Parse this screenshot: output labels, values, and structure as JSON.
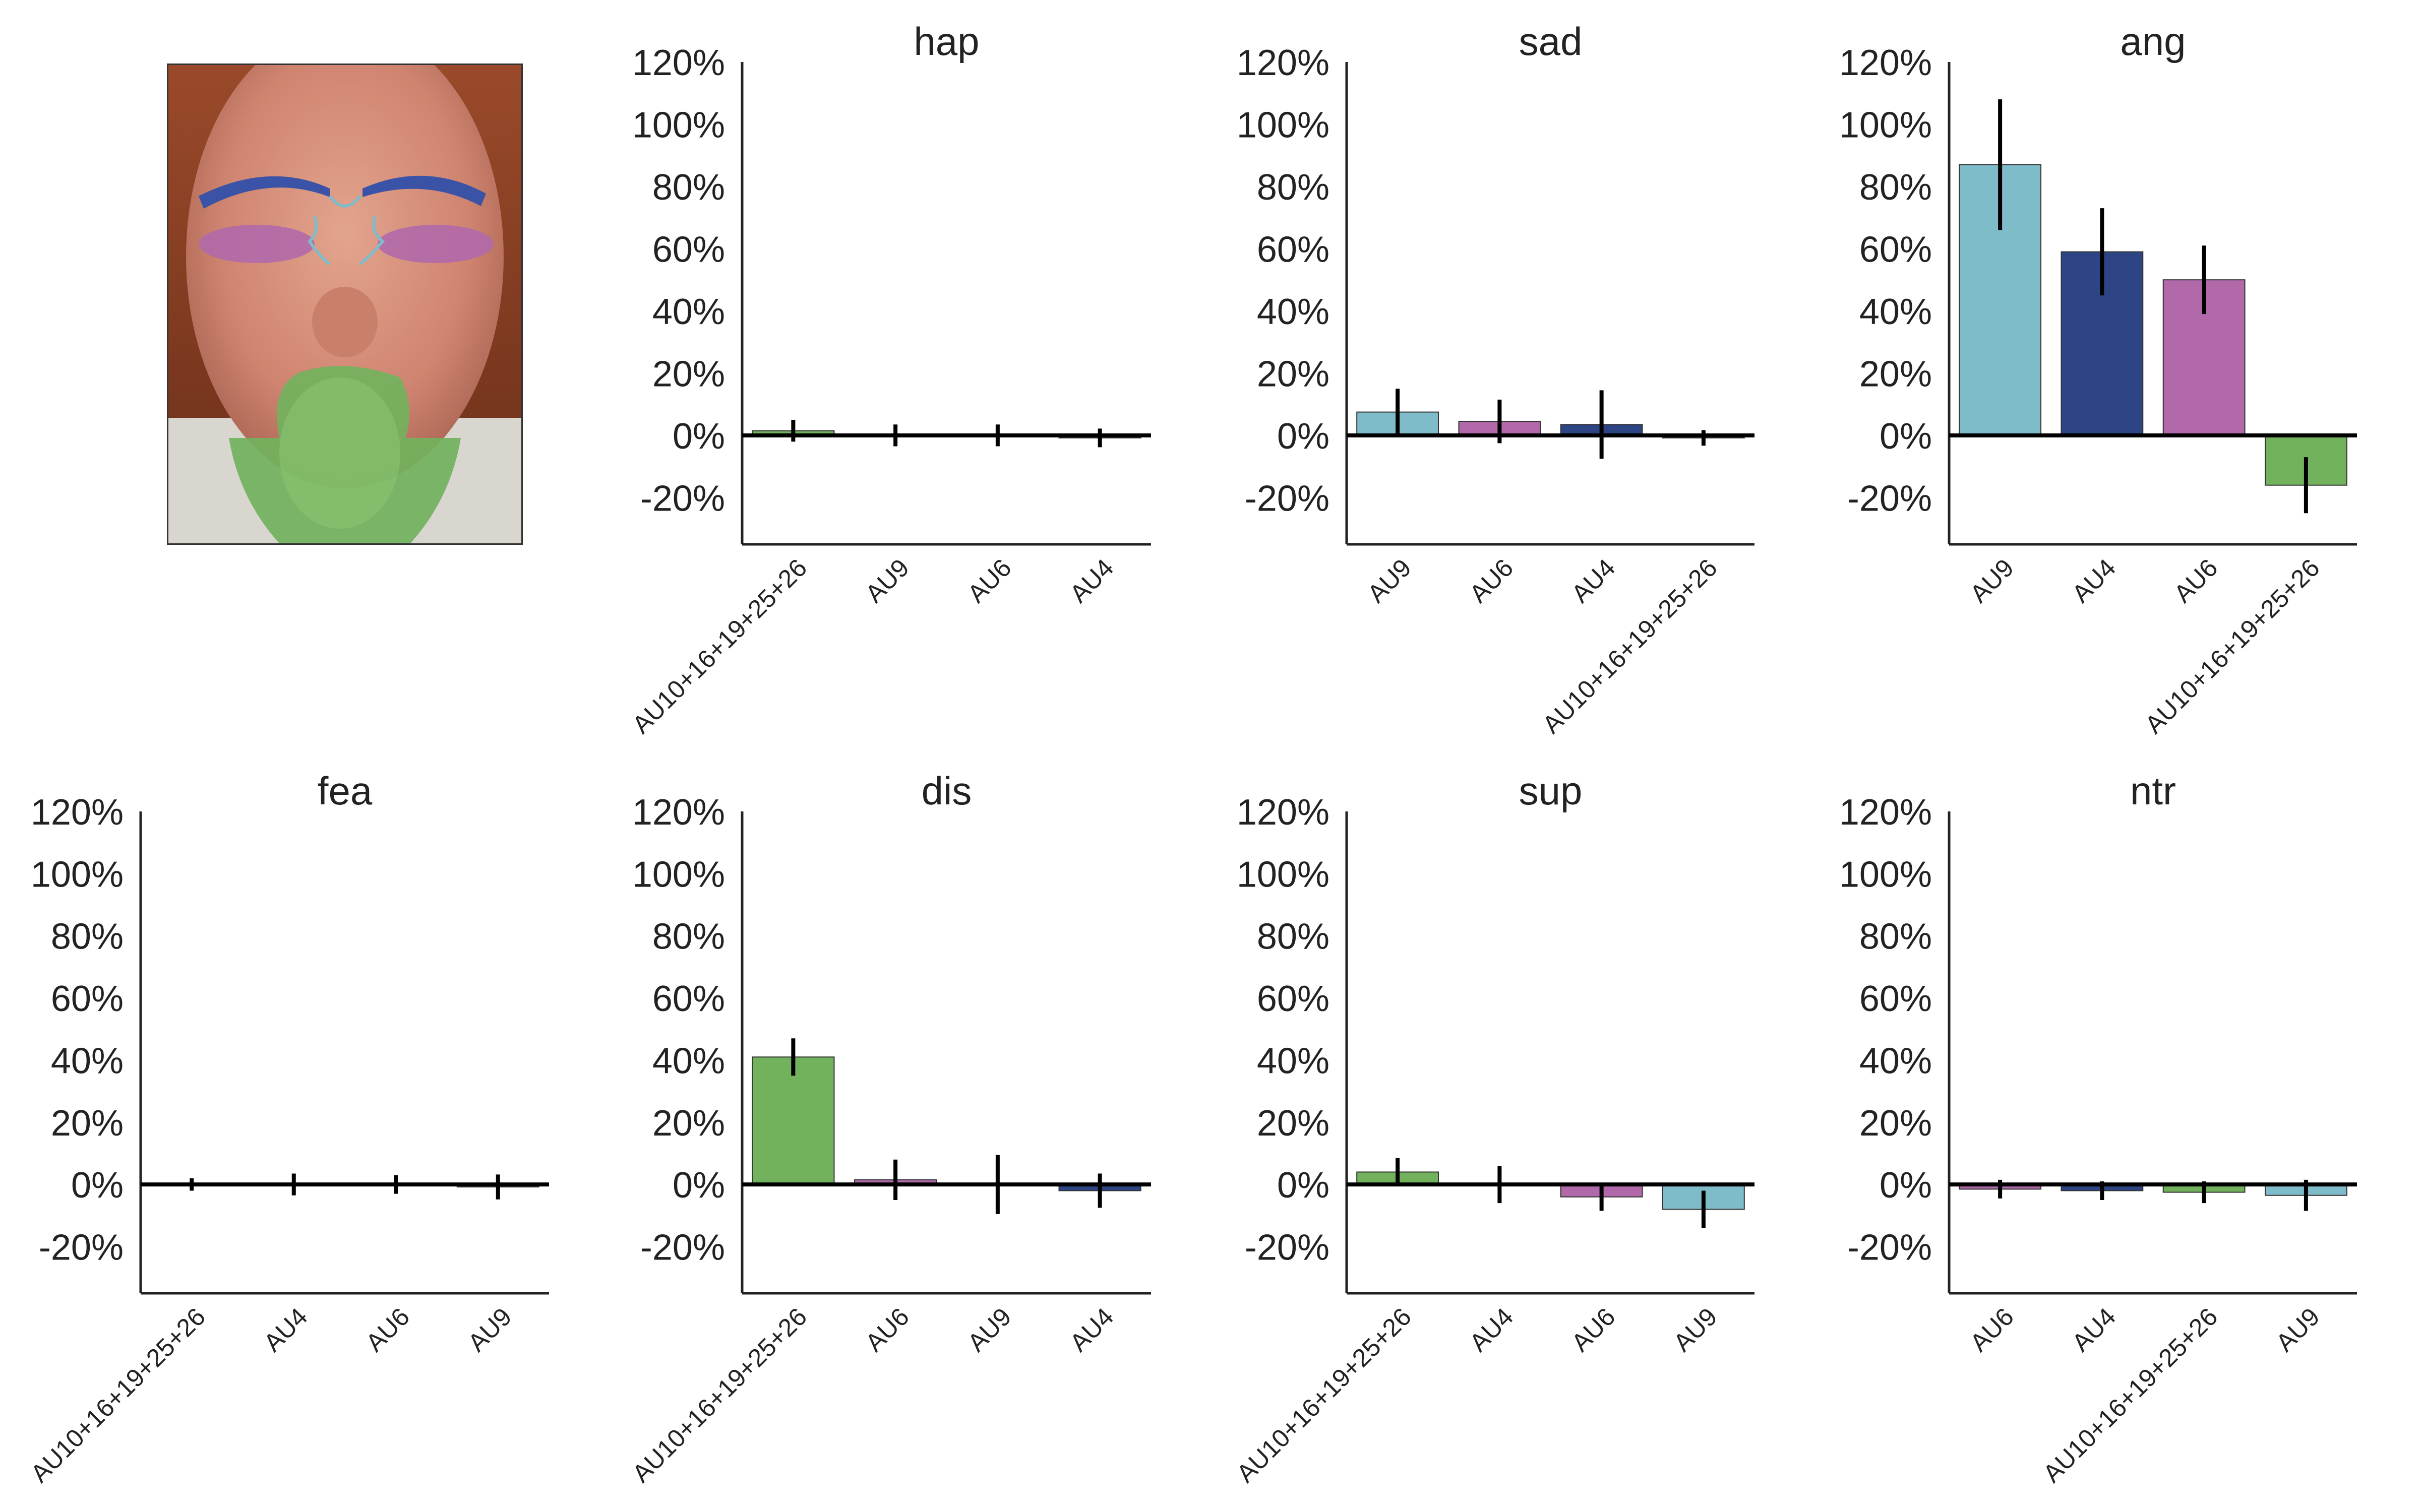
{
  "figure": {
    "face_image": {
      "description_icon": "face-icon",
      "au_overlays": [
        {
          "au": "AU4",
          "color": "#2e4585"
        },
        {
          "au": "AU6",
          "color": "#b169aa"
        },
        {
          "au": "AU9",
          "color": "#7ebcca"
        },
        {
          "au": "AU10+16+19+25+26",
          "color": "#72b25d"
        }
      ]
    }
  },
  "colors": {
    "AU4": "#2e4585",
    "AU6": "#b169aa",
    "AU9": "#7ebcca",
    "AU10+16+19+25+26": "#72b25d",
    "axis": "#222222",
    "error_bar": "#000000"
  },
  "chart_data": [
    {
      "type": "bar",
      "title": "hap",
      "ylim": [
        -35,
        120
      ],
      "yticks": [
        "120%",
        "100%",
        "80%",
        "60%",
        "40%",
        "20%",
        "0%",
        "-20%"
      ],
      "yticks_values": [
        120,
        100,
        80,
        60,
        40,
        20,
        0,
        -20
      ],
      "categories": [
        "AU10+16+19+25+26",
        "AU9",
        "AU6",
        "AU4"
      ],
      "values": [
        1.5,
        0.0,
        0.0,
        -0.8
      ],
      "errors": [
        3.5,
        3.5,
        3.5,
        3.0
      ]
    },
    {
      "type": "bar",
      "title": "sad",
      "ylim": [
        -35,
        120
      ],
      "yticks": [
        "120%",
        "100%",
        "80%",
        "60%",
        "40%",
        "20%",
        "0%",
        "-20%"
      ],
      "yticks_values": [
        120,
        100,
        80,
        60,
        40,
        20,
        0,
        -20
      ],
      "categories": [
        "AU9",
        "AU6",
        "AU4",
        "AU10+16+19+25+26"
      ],
      "values": [
        7.5,
        4.5,
        3.5,
        -0.8
      ],
      "errors": [
        7.5,
        7.0,
        11.0,
        2.5
      ]
    },
    {
      "type": "bar",
      "title": "ang",
      "ylim": [
        -35,
        120
      ],
      "yticks": [
        "120%",
        "100%",
        "80%",
        "60%",
        "40%",
        "20%",
        "0%",
        "-20%"
      ],
      "yticks_values": [
        120,
        100,
        80,
        60,
        40,
        20,
        0,
        -20
      ],
      "categories": [
        "AU9",
        "AU4",
        "AU6",
        "AU10+16+19+25+26"
      ],
      "values": [
        87,
        59,
        50,
        -16
      ],
      "errors": [
        21,
        14,
        11,
        9
      ]
    },
    {
      "type": "bar",
      "title": "fea",
      "ylim": [
        -35,
        120
      ],
      "yticks": [
        "120%",
        "100%",
        "80%",
        "60%",
        "40%",
        "20%",
        "0%",
        "-20%"
      ],
      "yticks_values": [
        120,
        100,
        80,
        60,
        40,
        20,
        0,
        -20
      ],
      "categories": [
        "AU10+16+19+25+26",
        "AU4",
        "AU6",
        "AU9"
      ],
      "values": [
        0.0,
        0.0,
        0.0,
        -0.8
      ],
      "errors": [
        2.0,
        3.5,
        3.0,
        4.0
      ]
    },
    {
      "type": "bar",
      "title": "dis",
      "ylim": [
        -35,
        120
      ],
      "yticks": [
        "120%",
        "100%",
        "80%",
        "60%",
        "40%",
        "20%",
        "0%",
        "-20%"
      ],
      "yticks_values": [
        120,
        100,
        80,
        60,
        40,
        20,
        0,
        -20
      ],
      "categories": [
        "AU10+16+19+25+26",
        "AU6",
        "AU9",
        "AU4"
      ],
      "values": [
        41,
        1.5,
        0.0,
        -2.0
      ],
      "errors": [
        6.0,
        6.5,
        9.5,
        5.5
      ]
    },
    {
      "type": "bar",
      "title": "sup",
      "ylim": [
        -35,
        120
      ],
      "yticks": [
        "120%",
        "100%",
        "80%",
        "60%",
        "40%",
        "20%",
        "0%",
        "-20%"
      ],
      "yticks_values": [
        120,
        100,
        80,
        60,
        40,
        20,
        0,
        -20
      ],
      "categories": [
        "AU10+16+19+25+26",
        "AU4",
        "AU6",
        "AU9"
      ],
      "values": [
        4.0,
        0.0,
        -4.0,
        -8.0
      ],
      "errors": [
        4.5,
        6.0,
        4.5,
        6.0
      ]
    },
    {
      "type": "bar",
      "title": "ntr",
      "ylim": [
        -35,
        120
      ],
      "yticks": [
        "120%",
        "100%",
        "80%",
        "60%",
        "40%",
        "20%",
        "0%",
        "-20%"
      ],
      "yticks_values": [
        120,
        100,
        80,
        60,
        40,
        20,
        0,
        -20
      ],
      "categories": [
        "AU6",
        "AU4",
        "AU10+16+19+25+26",
        "AU9"
      ],
      "values": [
        -1.5,
        -2.0,
        -2.5,
        -3.5
      ],
      "errors": [
        3.0,
        3.0,
        3.5,
        5.0
      ]
    }
  ]
}
